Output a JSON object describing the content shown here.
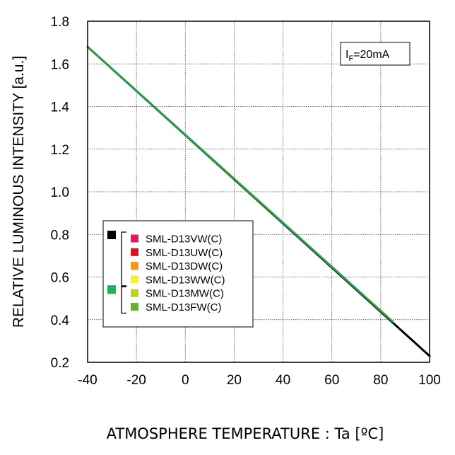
{
  "chart_data": {
    "type": "line",
    "title": "",
    "xlabel": "ATMOSPHERE TEMPERATURE : Ta [ºC]",
    "ylabel": "RELATIVE LUMINOUS INTENSITY [a.u.]",
    "xlim": [
      -40,
      100
    ],
    "ylim": [
      0.2,
      1.8
    ],
    "x_ticks": [
      -40,
      -20,
      0,
      20,
      40,
      60,
      80,
      100
    ],
    "y_ticks": [
      0.2,
      0.4,
      0.6,
      0.8,
      1.0,
      1.2,
      1.4,
      1.6,
      1.8
    ],
    "y_tick_labels": [
      "0.2",
      "0.4",
      "0.6",
      "0.8",
      "1.0",
      "1.2",
      "1.4",
      "1.6",
      "1.8"
    ],
    "grid": true,
    "condition": {
      "prefix": "I",
      "subscript": "F",
      "suffix": "=20mA"
    },
    "series": [
      {
        "color": "#000000",
        "x": [
          -40,
          100
        ],
        "y": [
          1.68,
          0.23
        ]
      },
      {
        "color": "#2aa04a",
        "x": [
          -40,
          85
        ],
        "y": [
          1.68,
          0.39
        ]
      }
    ],
    "legend": {
      "position": "lower-left",
      "groups": [
        {
          "marker_color": "#000000",
          "items": [
            {
              "label": "SML-D13VW(C)",
              "color": "#e6175d"
            },
            {
              "label": "SML-D13UW(C)",
              "color": "#e0101b"
            },
            {
              "label": "SML-D13DW(C)",
              "color": "#f0961e"
            },
            {
              "label": "SML-D13WW(C)",
              "color": "#ffee22"
            }
          ]
        },
        {
          "marker_color": "#1fb25a",
          "items": [
            {
              "label": "SML-D13MW(C)",
              "color": "#bdd21c"
            },
            {
              "label": "SML-D13FW(C)",
              "color": "#66b32e"
            }
          ]
        }
      ]
    }
  }
}
